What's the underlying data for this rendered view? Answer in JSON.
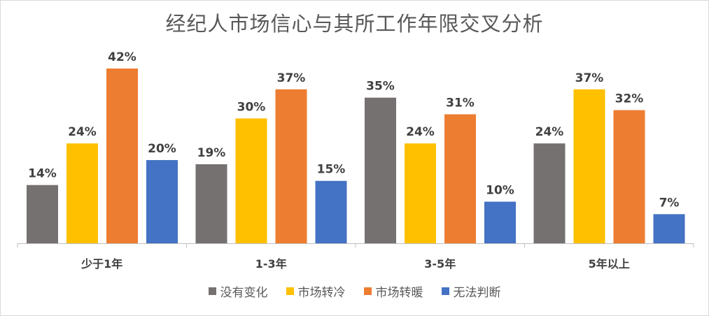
{
  "chart_data": {
    "type": "bar",
    "title": "经纪人市场信心与其所工作年限交叉分析",
    "categories": [
      "少于1年",
      "1-3年",
      "3-5年",
      "5年以上"
    ],
    "series": [
      {
        "name": "没有变化",
        "color": "#767171",
        "values": [
          14,
          19,
          35,
          24
        ],
        "labels": [
          "14%",
          "19%",
          "35%",
          "24%"
        ]
      },
      {
        "name": "市场转冷",
        "color": "#ffc000",
        "values": [
          24,
          30,
          24,
          37
        ],
        "labels": [
          "24%",
          "30%",
          "24%",
          "37%"
        ]
      },
      {
        "name": "市场转暖",
        "color": "#ed7d31",
        "values": [
          42,
          37,
          31,
          32
        ],
        "labels": [
          "42%",
          "37%",
          "31%",
          "32%"
        ]
      },
      {
        "name": "无法判断",
        "color": "#4472c4",
        "values": [
          20,
          15,
          10,
          7
        ],
        "labels": [
          "20%",
          "15%",
          "10%",
          "7%"
        ]
      }
    ],
    "ylim": [
      0,
      45
    ],
    "grid": false,
    "legend_position": "bottom"
  }
}
